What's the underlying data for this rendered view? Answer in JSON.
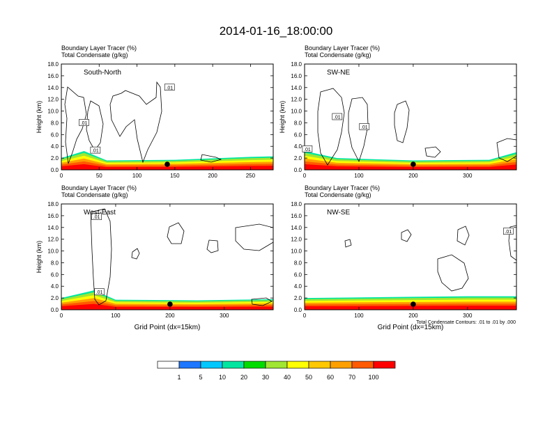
{
  "title": "2014-01-16_18:00:00",
  "colors": {
    "frame": "#000000",
    "contour": "#000000",
    "marker": "#000000",
    "levels": [
      "#ffffff",
      "#1e78ff",
      "#00c8ff",
      "#00e6a0",
      "#00dc00",
      "#a0e632",
      "#ffff00",
      "#ffc800",
      "#ffa000",
      "#ff5a00",
      "#ff0000"
    ]
  },
  "chart_data": [
    {
      "type": "contour-cross-section",
      "panel_label": "South-North",
      "header_lines": [
        "Boundary Layer Tracer   (%)",
        "Total Condensate   (g/kg)"
      ],
      "ylabel": "Height (km)",
      "xlabel": "",
      "xlim": [
        0,
        280
      ],
      "ylim": [
        0,
        18
      ],
      "xticks": [
        0,
        50,
        100,
        150,
        200,
        250
      ],
      "yticks": [
        "0.0",
        "2.0",
        "4.0",
        "6.0",
        "8.0",
        "10.0",
        "12.0",
        "14.0",
        "16.0",
        "18.0"
      ],
      "marker_x": 140,
      "contour_label_text": ".01",
      "contour_labels": [
        {
          "x": 143,
          "y": 14.0
        },
        {
          "x": 30,
          "y": 8.0
        },
        {
          "x": 45,
          "y": 3.3
        }
      ],
      "boundary_layer_top_km": [
        {
          "x": 0,
          "y": 2.0
        },
        {
          "x": 30,
          "y": 3.2
        },
        {
          "x": 60,
          "y": 1.6
        },
        {
          "x": 150,
          "y": 1.7
        },
        {
          "x": 250,
          "y": 2.2
        },
        {
          "x": 280,
          "y": 2.3
        }
      ],
      "footnote": ""
    },
    {
      "type": "contour-cross-section",
      "panel_label": "SW-NE",
      "header_lines": [
        "Boundary Layer Tracer   (%)",
        "Total Condensate   (g/kg)"
      ],
      "ylabel": "Height (km)",
      "xlabel": "",
      "xlim": [
        0,
        390
      ],
      "ylim": [
        0,
        18
      ],
      "xticks": [
        0,
        100,
        200,
        300
      ],
      "yticks": [
        "0.0",
        "2.0",
        "4.0",
        "6.0",
        "8.0",
        "10.0",
        "12.0",
        "14.0",
        "16.0",
        "18.0"
      ],
      "marker_x": 200,
      "contour_label_text": ".01",
      "contour_labels": [
        {
          "x": 60,
          "y": 9.0
        },
        {
          "x": 110,
          "y": 7.3
        },
        {
          "x": 5,
          "y": 3.5
        }
      ],
      "boundary_layer_top_km": [
        {
          "x": 0,
          "y": 3.2
        },
        {
          "x": 60,
          "y": 2.0
        },
        {
          "x": 200,
          "y": 1.6
        },
        {
          "x": 340,
          "y": 1.7
        },
        {
          "x": 390,
          "y": 3.0
        }
      ],
      "footnote": ""
    },
    {
      "type": "contour-cross-section",
      "panel_label": "West-East",
      "header_lines": [
        "Boundary Layer Tracer   (%)",
        "Total Condensate   (g/kg)"
      ],
      "ylabel": "Height (km)",
      "xlabel": "Grid Point (dx=15km)",
      "xlim": [
        0,
        390
      ],
      "ylim": [
        0,
        18
      ],
      "xticks": [
        0,
        100,
        200,
        300
      ],
      "yticks": [
        "0.0",
        "2.0",
        "4.0",
        "6.0",
        "8.0",
        "10.0",
        "12.0",
        "14.0",
        "16.0",
        "18.0"
      ],
      "marker_x": 200,
      "contour_label_text": ".01",
      "contour_labels": [
        {
          "x": 65,
          "y": 15.8
        },
        {
          "x": 70,
          "y": 3.0
        }
      ],
      "boundary_layer_top_km": [
        {
          "x": 0,
          "y": 2.0
        },
        {
          "x": 60,
          "y": 3.3
        },
        {
          "x": 100,
          "y": 1.7
        },
        {
          "x": 250,
          "y": 1.6
        },
        {
          "x": 390,
          "y": 1.8
        }
      ],
      "footnote": ""
    },
    {
      "type": "contour-cross-section",
      "panel_label": "NW-SE",
      "header_lines": [
        "Boundary Layer Tracer   (%)",
        "Total Condensate   (g/kg)"
      ],
      "ylabel": "",
      "xlabel": "Grid Point (dx=15km)",
      "xlim": [
        0,
        390
      ],
      "ylim": [
        0,
        18
      ],
      "xticks": [
        0,
        100,
        200,
        300
      ],
      "yticks": [
        "0.0",
        "2.0",
        "4.0",
        "6.0",
        "8.0",
        "10.0",
        "12.0",
        "14.0",
        "16.0",
        "18.0"
      ],
      "marker_x": 200,
      "contour_label_text": ".01",
      "contour_labels": [
        {
          "x": 375,
          "y": 13.3
        }
      ],
      "boundary_layer_top_km": [
        {
          "x": 0,
          "y": 2.0
        },
        {
          "x": 200,
          "y": 2.2
        },
        {
          "x": 300,
          "y": 2.3
        },
        {
          "x": 390,
          "y": 2.3
        }
      ],
      "footnote": "Total Condensate Contours: .01 to .01 by .000"
    }
  ],
  "colorbar": {
    "labels": [
      "1",
      "5",
      "10",
      "20",
      "30",
      "40",
      "50",
      "60",
      "70",
      "100"
    ]
  }
}
